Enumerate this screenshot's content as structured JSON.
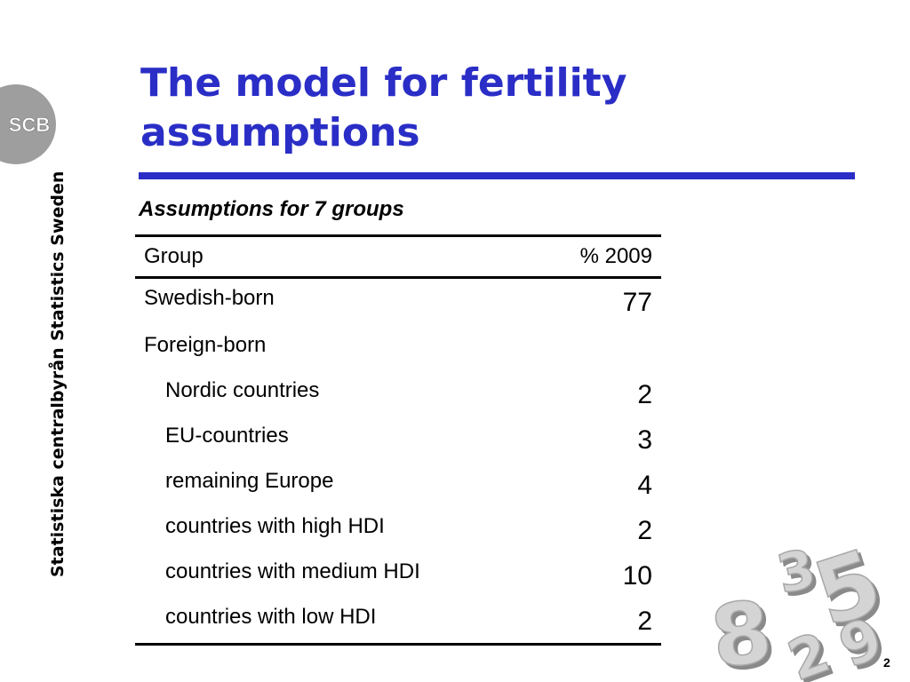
{
  "sidebar": {
    "logo_text": "SCB",
    "org_name_en": "Statistics Sweden",
    "org_name_sv": "Statistiska centralbyrån"
  },
  "slide": {
    "title": "The model for fertility assumptions",
    "subtitle": "Assumptions for 7 groups",
    "page_number": "2"
  },
  "table": {
    "headers": [
      "Group",
      "% 2009"
    ],
    "rows": [
      {
        "label": "Swedish-born",
        "value": "77"
      },
      {
        "label": "Foreign-born",
        "value": ""
      },
      {
        "label": "Nordic countries",
        "value": "2"
      },
      {
        "label": "EU-countries",
        "value": "3"
      },
      {
        "label": "remaining Europe",
        "value": "4"
      },
      {
        "label": "countries with high HDI",
        "value": "2"
      },
      {
        "label": "countries with medium HDI",
        "value": "10"
      },
      {
        "label": "countries with low HDI",
        "value": "2"
      }
    ]
  },
  "decoration": {
    "digits": [
      "8",
      "3",
      "5",
      "2",
      "9"
    ]
  },
  "colors": {
    "title_blue": "#2a2ec6",
    "logo_grey": "#9e9e9e",
    "deco_grey": "#c8c8c8"
  }
}
